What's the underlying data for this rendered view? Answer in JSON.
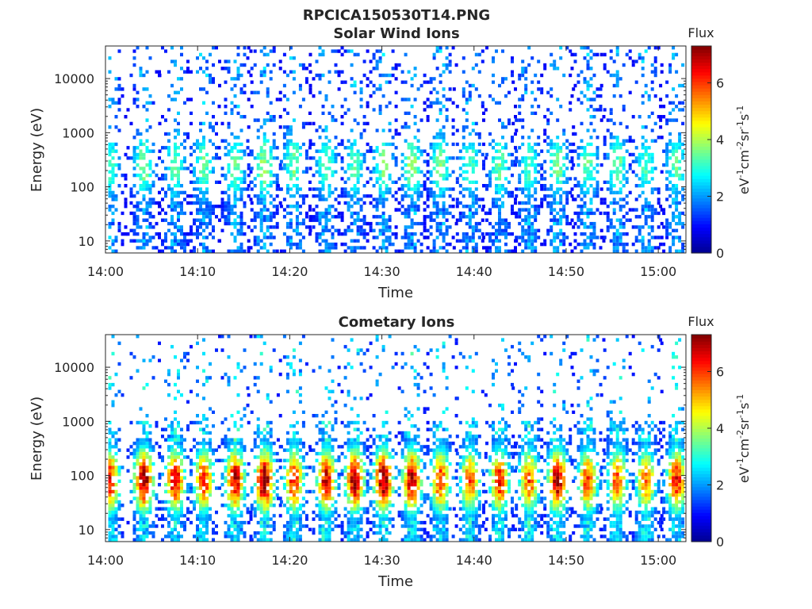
{
  "figure_title": "RPCICA150530T14.PNG",
  "colormap": [
    "#00008f",
    "#0000ff",
    "#0080ff",
    "#00ffff",
    "#80ff80",
    "#ffff00",
    "#ff8000",
    "#ff0000",
    "#800000"
  ],
  "chart_data": [
    {
      "type": "heatmap",
      "title": "Solar Wind Ions",
      "xlabel": "Time",
      "ylabel": "Energy (eV)",
      "x_ticks": [
        "14:00",
        "14:10",
        "14:20",
        "14:30",
        "14:40",
        "14:50",
        "15:00"
      ],
      "x_tick_minutes": [
        0,
        10,
        20,
        30,
        40,
        50,
        60
      ],
      "xlim_minutes": [
        0,
        63
      ],
      "y_scale": "log",
      "y_ticks": [
        "10",
        "100",
        "1000",
        "10000"
      ],
      "y_tick_values": [
        10,
        100,
        1000,
        10000
      ],
      "ylim": [
        6,
        40000
      ],
      "colorbar": {
        "label": "Flux",
        "units": "eV-1cm-2sr-1s-1",
        "ticks": [
          "0",
          "2",
          "4",
          "6"
        ],
        "tick_values": [
          0,
          2,
          4,
          6
        ],
        "range": [
          0,
          7.3
        ]
      },
      "scan_times_minutes": [
        0.3,
        4.0,
        7.4,
        10.5,
        13.9,
        17.1,
        20.3,
        23.8,
        26.9,
        30.0,
        33.1,
        36.2,
        39.4,
        42.6,
        45.8,
        48.9,
        52.2,
        55.4,
        58.5,
        61.8
      ],
      "peak_flux": [
        2.7,
        3.1,
        2.8,
        2.9,
        3.0,
        3.3,
        3.0,
        2.9,
        2.7,
        3.0,
        3.2,
        3.0,
        2.8,
        2.9,
        2.7,
        3.0,
        2.8,
        2.9,
        2.7,
        2.8
      ],
      "core_energy_eV": 250
    },
    {
      "type": "heatmap",
      "title": "Cometary Ions",
      "xlabel": "Time",
      "ylabel": "Energy (eV)",
      "x_ticks": [
        "14:00",
        "14:10",
        "14:20",
        "14:30",
        "14:40",
        "14:50",
        "15:00"
      ],
      "x_tick_minutes": [
        0,
        10,
        20,
        30,
        40,
        50,
        60
      ],
      "xlim_minutes": [
        0,
        63
      ],
      "y_scale": "log",
      "y_ticks": [
        "10",
        "100",
        "1000",
        "10000"
      ],
      "y_tick_values": [
        10,
        100,
        1000,
        10000
      ],
      "ylim": [
        6,
        40000
      ],
      "colorbar": {
        "label": "Flux",
        "units": "eV-1cm-2sr-1s-1",
        "ticks": [
          "0",
          "2",
          "4",
          "6"
        ],
        "tick_values": [
          0,
          2,
          4,
          6
        ],
        "range": [
          0,
          7.3
        ]
      },
      "scan_times_minutes": [
        0.3,
        4.0,
        7.4,
        10.5,
        13.9,
        17.1,
        20.3,
        23.8,
        26.9,
        30.0,
        33.1,
        36.2,
        39.4,
        42.6,
        45.8,
        48.9,
        52.2,
        55.4,
        58.5,
        61.8
      ],
      "peak_flux": [
        5.6,
        6.3,
        5.8,
        5.3,
        6.0,
        6.4,
        5.4,
        5.9,
        6.1,
        6.5,
        6.0,
        5.2,
        5.0,
        5.4,
        5.0,
        6.1,
        5.2,
        5.0,
        4.8,
        5.5
      ],
      "core_energy_eV": 80
    }
  ]
}
